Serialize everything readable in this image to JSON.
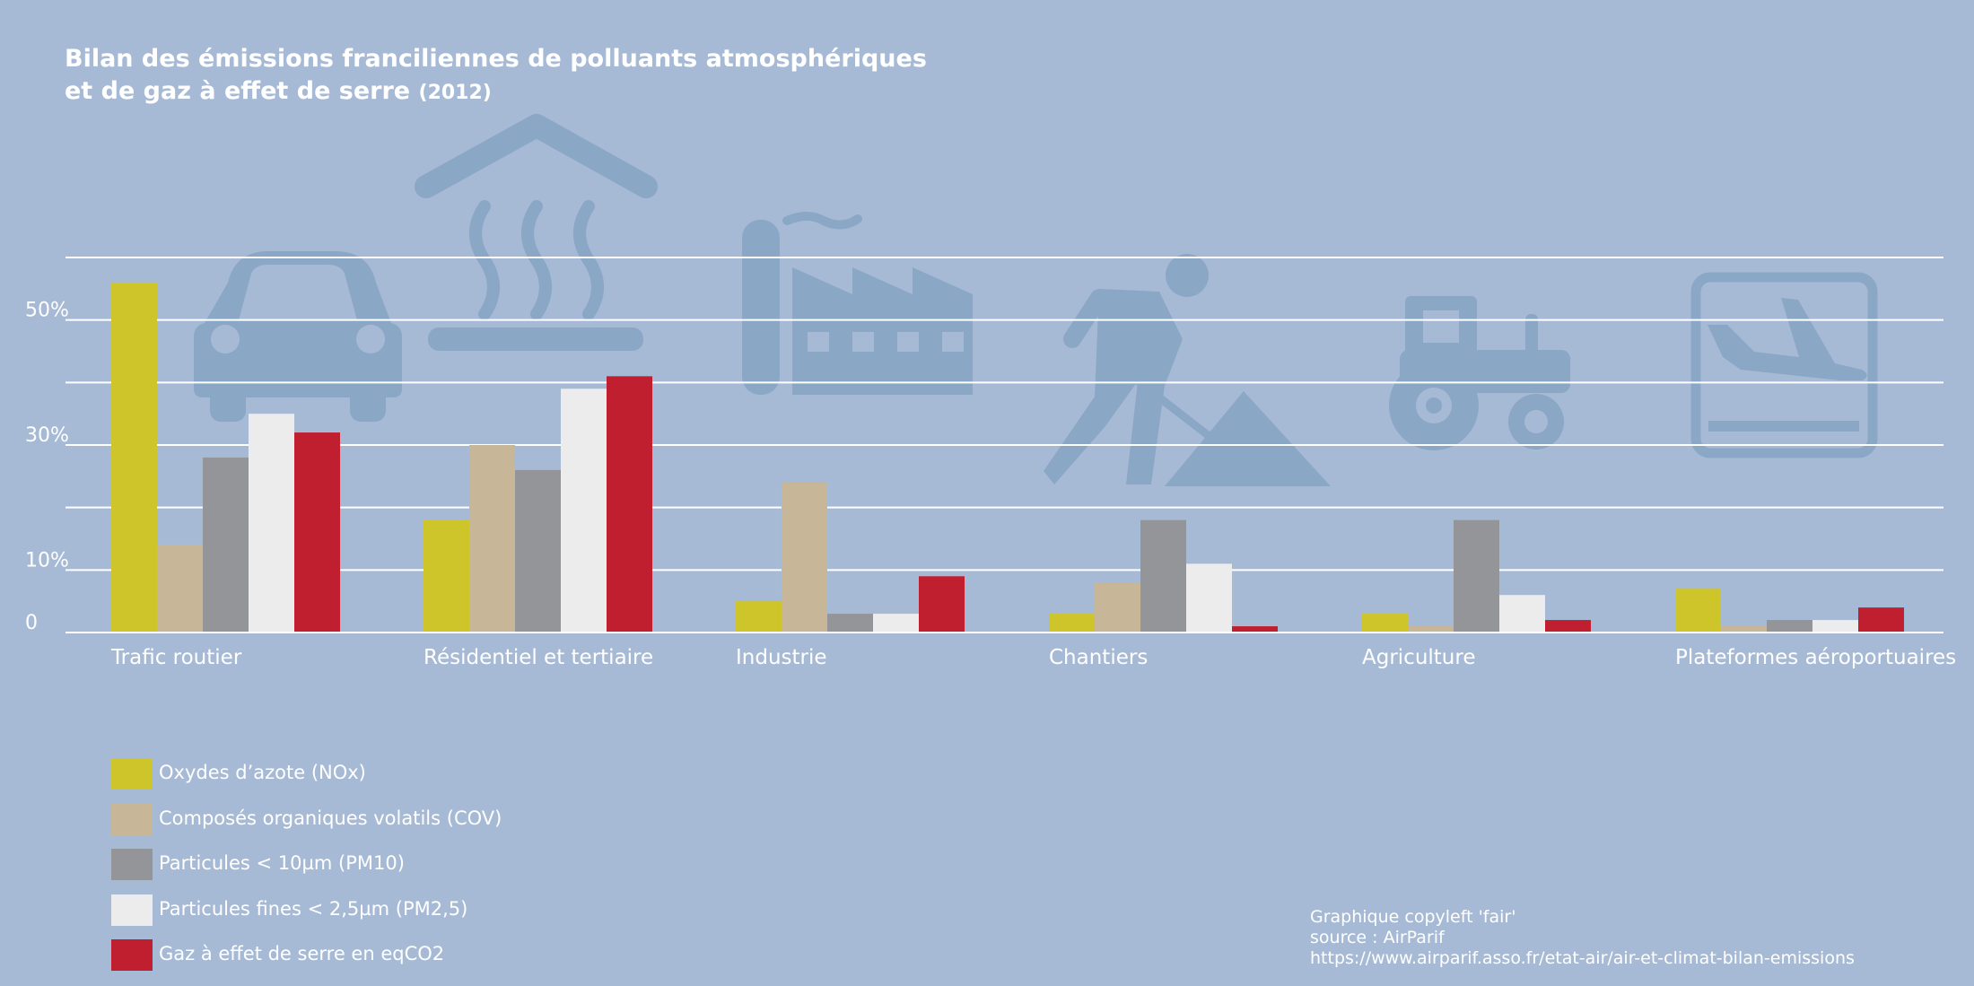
{
  "title": {
    "line1": "Bilan des émissions franciliennes de polluants atmosphériques",
    "line2": "et de gaz à effet de serre",
    "year": "(2012)"
  },
  "chart_data": {
    "type": "bar",
    "categories": [
      "Trafic routier",
      "Résidentiel et tertiaire",
      "Industrie",
      "Chantiers",
      "Agriculture",
      "Plateformes aéroportuaires"
    ],
    "ytick_labels": [
      "50%",
      "30%",
      "10%",
      "0"
    ],
    "ytick_values": [
      50,
      30,
      10,
      0
    ],
    "ylim": [
      0,
      60
    ],
    "grid": true,
    "legend_position": "bottom-left",
    "series": [
      {
        "name": "Oxydes d’azote (NOx)",
        "color": "#cdc52a",
        "values": [
          56,
          18,
          5,
          3,
          3,
          7
        ]
      },
      {
        "name": "Composés organiques volatils (COV)",
        "color": "#c7b697",
        "values": [
          14,
          30,
          24,
          8,
          1,
          1
        ]
      },
      {
        "name": "Particules < 10µm (PM10)",
        "color": "#949599",
        "values": [
          28,
          26,
          3,
          18,
          18,
          2
        ]
      },
      {
        "name": "Particules fines < 2,5µm (PM2,5)",
        "color": "#ececed",
        "values": [
          35,
          39,
          3,
          11,
          6,
          2
        ]
      },
      {
        "name": "Gaz à effet de serre en eqCO2",
        "color": "#c01f30",
        "values": [
          32,
          41,
          9,
          1,
          2,
          4
        ]
      }
    ],
    "icons": [
      "car-icon",
      "heated-building-icon",
      "factory-icon",
      "construction-worker-icon",
      "tractor-icon",
      "airport-landing-icon"
    ]
  },
  "credits": {
    "line1": "Graphique copyleft 'fair'",
    "line2": "source : AirParif",
    "line3": "https://www.airparif.asso.fr/etat-air/air-et-climat-bilan-emissions"
  }
}
